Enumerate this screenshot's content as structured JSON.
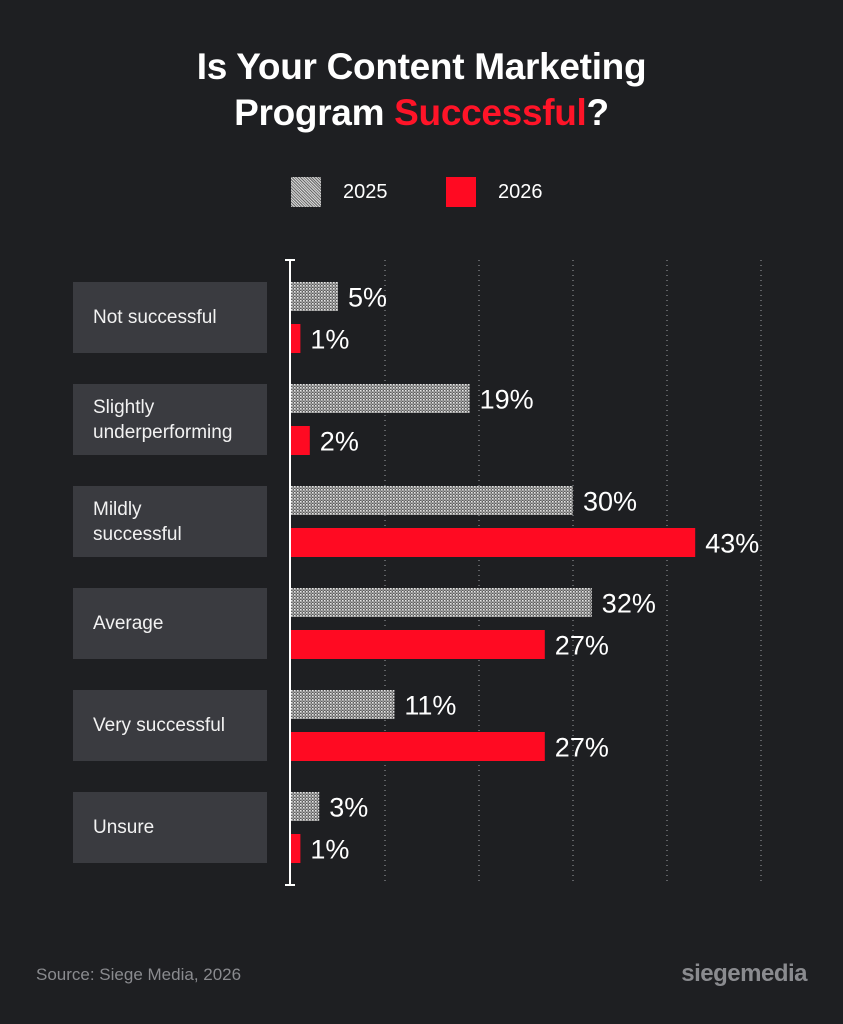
{
  "title": {
    "line1": "Is Your Content Marketing",
    "line2_prefix": "Program ",
    "line2_highlight": "Successful",
    "line2_suffix": "?"
  },
  "colors": {
    "background": "#1e1f22",
    "accent": "#ff0a22",
    "pattern_light": "#d8d8d8",
    "category_box": "#3a3b40",
    "muted_text": "#8a8b8f"
  },
  "legend": [
    {
      "label": "2025",
      "style": "dotted-gray-pattern"
    },
    {
      "label": "2026",
      "style": "solid-red"
    }
  ],
  "chart_data": {
    "type": "bar",
    "orientation": "horizontal",
    "categories": [
      "Not successful",
      "Slightly\nunderperforming",
      "Mildly\nsuccessful",
      "Average",
      "Very successful",
      "Unsure"
    ],
    "series": [
      {
        "name": "2025",
        "values": [
          5,
          19,
          30,
          32,
          11,
          3
        ],
        "labels": [
          "5%",
          "19%",
          "30%",
          "32%",
          "11%",
          "3%"
        ]
      },
      {
        "name": "2026",
        "values": [
          1,
          2,
          43,
          27,
          27,
          1
        ],
        "labels": [
          "1%",
          "2%",
          "43%",
          "27%",
          "27%",
          "1%"
        ]
      }
    ],
    "xlim": [
      0,
      50
    ],
    "gridlines": [
      10,
      20,
      30,
      40,
      50
    ],
    "grid": "dotted vertical",
    "legend_position": "top-center"
  },
  "footer": {
    "source": "Source: Siege Media, 2026",
    "brand": "siegemedia"
  }
}
